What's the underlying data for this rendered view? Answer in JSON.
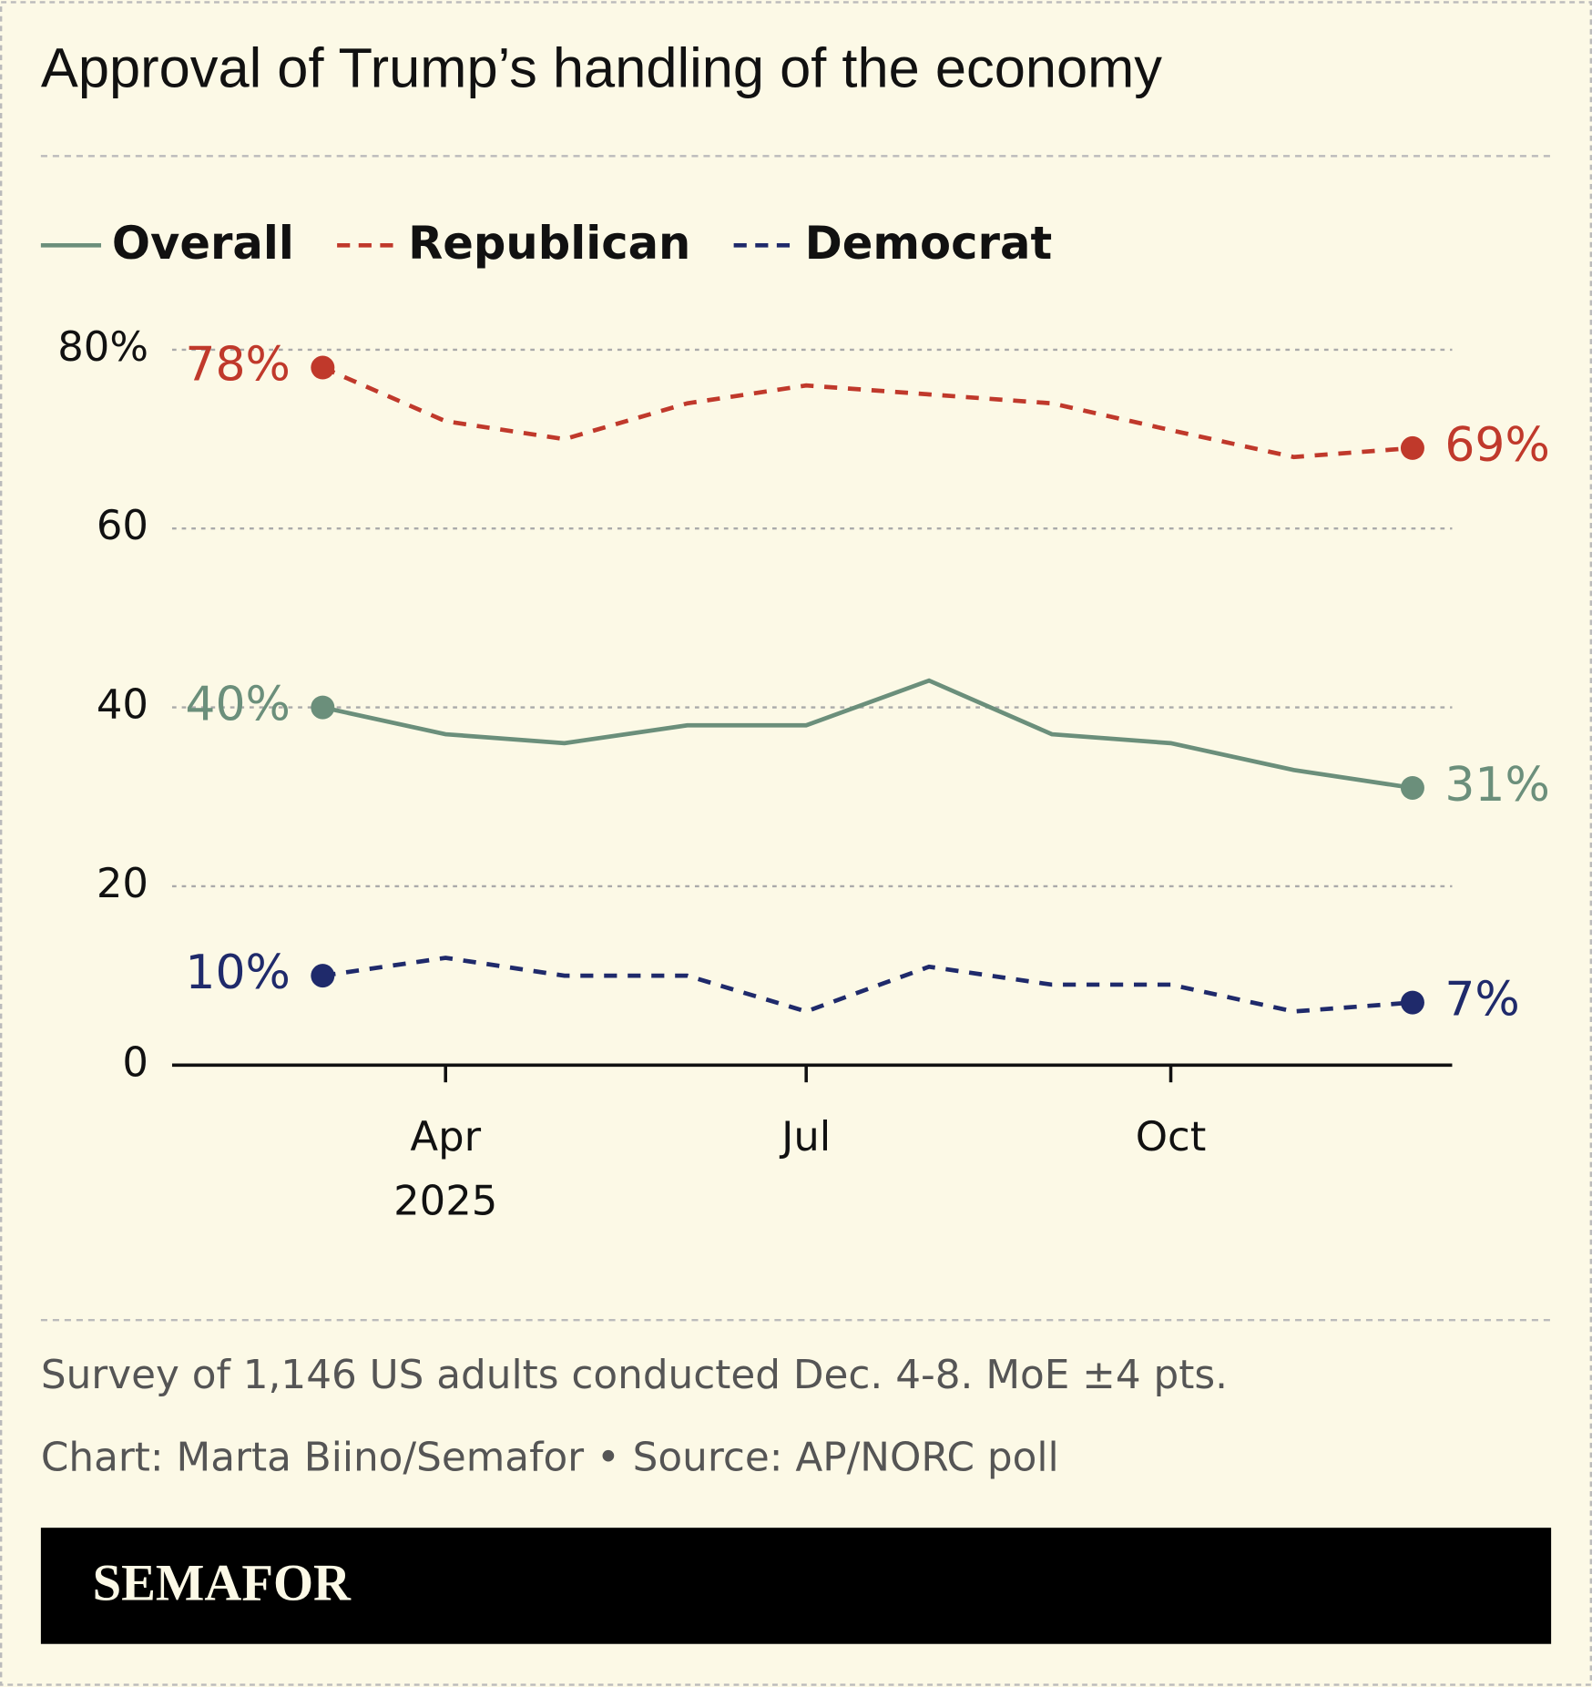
{
  "chart_data": {
    "type": "line",
    "title": "Approval of Trump’s handling of the economy",
    "x": [
      "2025-03",
      "2025-04",
      "2025-05",
      "2025-06",
      "2025-07",
      "2025-08",
      "2025-09",
      "2025-10",
      "2025-11",
      "2025-12"
    ],
    "xlim": [
      "2025-01-22",
      "2025-12-11"
    ],
    "xticks": [
      {
        "value": "2025-04",
        "label": "Apr"
      },
      {
        "value": "2025-07",
        "label": "Jul"
      },
      {
        "value": "2025-10",
        "label": "Oct"
      }
    ],
    "xtick_year": "2025",
    "ylim": [
      0,
      80
    ],
    "yticks": [
      0,
      20,
      40,
      60,
      {
        "value": 80,
        "label": "80%"
      }
    ],
    "grid": true,
    "series": [
      {
        "name": "Overall",
        "color": "#6b8f7b",
        "dash": false,
        "values": [
          40,
          37,
          36,
          38,
          38,
          43,
          37,
          36,
          33,
          31
        ],
        "value_labels": [
          "40%",
          null,
          null,
          null,
          null,
          null,
          null,
          null,
          null,
          "31%"
        ]
      },
      {
        "name": "Republican",
        "color": "#c0392b",
        "dash": true,
        "values": [
          78,
          72,
          70,
          74,
          76,
          75,
          74,
          71,
          68,
          69
        ],
        "value_labels": [
          "78%",
          null,
          null,
          null,
          null,
          null,
          null,
          null,
          null,
          "69%"
        ]
      },
      {
        "name": "Democrat",
        "color": "#1f2a6b",
        "dash": true,
        "values": [
          10,
          12,
          10,
          10,
          6,
          11,
          9,
          9,
          6,
          7
        ],
        "value_labels": [
          "10%",
          null,
          null,
          null,
          null,
          null,
          null,
          null,
          null,
          "7%"
        ]
      }
    ],
    "note": "Survey of 1,146 US adults conducted Dec. 4-8. MoE ±4 pts.",
    "credit": "Chart: Marta Biino/Semafor • Source: AP/NORC poll",
    "brand": "SEMAFOR"
  }
}
